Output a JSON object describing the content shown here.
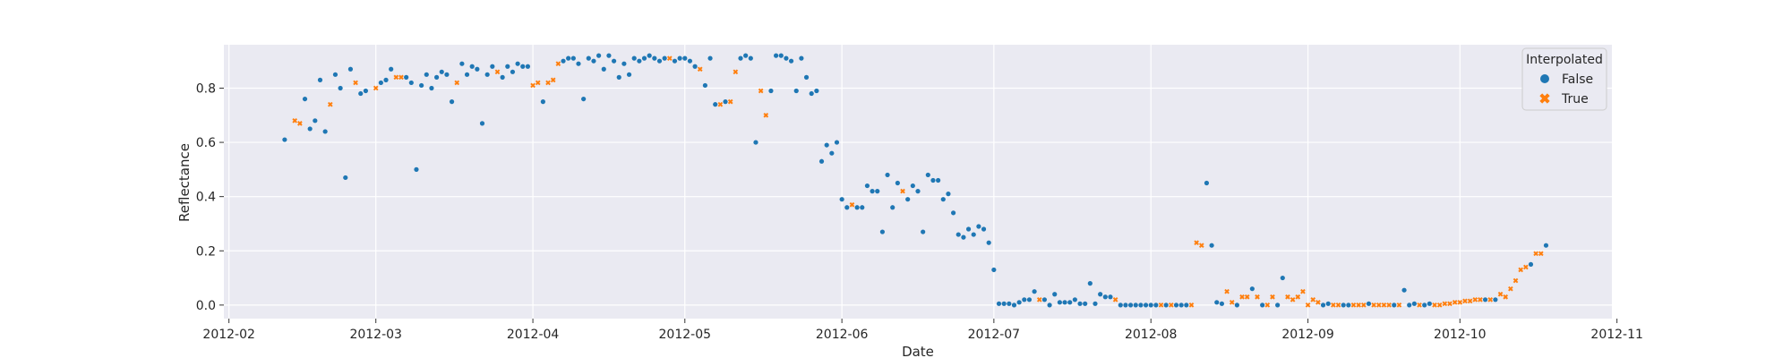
{
  "chart_data": {
    "type": "scatter",
    "title": "",
    "xlabel": "Date",
    "ylabel": "Reflectance",
    "x_ticks": [
      "2012-02",
      "2012-03",
      "2012-04",
      "2012-05",
      "2012-06",
      "2012-07",
      "2012-08",
      "2012-09",
      "2012-10",
      "2012-11"
    ],
    "x_tick_dates": [
      "2012-02-01",
      "2012-03-01",
      "2012-04-01",
      "2012-05-01",
      "2012-06-01",
      "2012-07-01",
      "2012-08-01",
      "2012-09-01",
      "2012-10-01",
      "2012-11-01"
    ],
    "y_ticks": [
      "0.0",
      "0.2",
      "0.4",
      "0.6",
      "0.8"
    ],
    "y_tick_values": [
      0.0,
      0.2,
      0.4,
      0.6,
      0.8
    ],
    "xlim": [
      "2012-01-31",
      "2012-10-31"
    ],
    "ylim": [
      -0.05,
      0.96
    ],
    "grid": true,
    "legend_position": "top-right",
    "legend": {
      "title": "Interpolated",
      "entries": [
        {
          "label": "False",
          "color": "#1f77b4",
          "marker": "circle"
        },
        {
          "label": "True",
          "color": "#ff7f0e",
          "marker": "x"
        }
      ]
    },
    "series": [
      {
        "name": "False",
        "color": "#1f77b4",
        "marker": "circle",
        "points": [
          [
            "2012-02-12",
            0.61
          ],
          [
            "2012-02-16",
            0.76
          ],
          [
            "2012-02-17",
            0.65
          ],
          [
            "2012-02-18",
            0.68
          ],
          [
            "2012-02-19",
            0.83
          ],
          [
            "2012-02-20",
            0.64
          ],
          [
            "2012-02-22",
            0.85
          ],
          [
            "2012-02-23",
            0.8
          ],
          [
            "2012-02-24",
            0.47
          ],
          [
            "2012-02-25",
            0.87
          ],
          [
            "2012-02-27",
            0.78
          ],
          [
            "2012-02-28",
            0.79
          ],
          [
            "2012-03-02",
            0.82
          ],
          [
            "2012-03-03",
            0.83
          ],
          [
            "2012-03-04",
            0.87
          ],
          [
            "2012-03-07",
            0.84
          ],
          [
            "2012-03-08",
            0.82
          ],
          [
            "2012-03-09",
            0.5
          ],
          [
            "2012-03-10",
            0.81
          ],
          [
            "2012-03-11",
            0.85
          ],
          [
            "2012-03-12",
            0.8
          ],
          [
            "2012-03-13",
            0.84
          ],
          [
            "2012-03-14",
            0.86
          ],
          [
            "2012-03-15",
            0.85
          ],
          [
            "2012-03-16",
            0.75
          ],
          [
            "2012-03-18",
            0.89
          ],
          [
            "2012-03-19",
            0.85
          ],
          [
            "2012-03-20",
            0.88
          ],
          [
            "2012-03-21",
            0.87
          ],
          [
            "2012-03-22",
            0.67
          ],
          [
            "2012-03-23",
            0.85
          ],
          [
            "2012-03-24",
            0.88
          ],
          [
            "2012-03-26",
            0.84
          ],
          [
            "2012-03-27",
            0.88
          ],
          [
            "2012-03-28",
            0.86
          ],
          [
            "2012-03-29",
            0.89
          ],
          [
            "2012-03-30",
            0.88
          ],
          [
            "2012-03-31",
            0.88
          ],
          [
            "2012-04-03",
            0.75
          ],
          [
            "2012-04-07",
            0.9
          ],
          [
            "2012-04-08",
            0.91
          ],
          [
            "2012-04-09",
            0.91
          ],
          [
            "2012-04-10",
            0.89
          ],
          [
            "2012-04-11",
            0.76
          ],
          [
            "2012-04-12",
            0.91
          ],
          [
            "2012-04-13",
            0.9
          ],
          [
            "2012-04-14",
            0.92
          ],
          [
            "2012-04-15",
            0.87
          ],
          [
            "2012-04-16",
            0.92
          ],
          [
            "2012-04-17",
            0.9
          ],
          [
            "2012-04-18",
            0.84
          ],
          [
            "2012-04-19",
            0.89
          ],
          [
            "2012-04-20",
            0.85
          ],
          [
            "2012-04-21",
            0.91
          ],
          [
            "2012-04-22",
            0.9
          ],
          [
            "2012-04-23",
            0.91
          ],
          [
            "2012-04-24",
            0.92
          ],
          [
            "2012-04-25",
            0.91
          ],
          [
            "2012-04-26",
            0.9
          ],
          [
            "2012-04-27",
            0.91
          ],
          [
            "2012-04-29",
            0.9
          ],
          [
            "2012-04-30",
            0.91
          ],
          [
            "2012-05-01",
            0.91
          ],
          [
            "2012-05-02",
            0.9
          ],
          [
            "2012-05-03",
            0.88
          ],
          [
            "2012-05-05",
            0.81
          ],
          [
            "2012-05-06",
            0.91
          ],
          [
            "2012-05-07",
            0.74
          ],
          [
            "2012-05-09",
            0.75
          ],
          [
            "2012-05-12",
            0.91
          ],
          [
            "2012-05-13",
            0.92
          ],
          [
            "2012-05-14",
            0.91
          ],
          [
            "2012-05-15",
            0.6
          ],
          [
            "2012-05-18",
            0.79
          ],
          [
            "2012-05-19",
            0.92
          ],
          [
            "2012-05-20",
            0.92
          ],
          [
            "2012-05-21",
            0.91
          ],
          [
            "2012-05-22",
            0.9
          ],
          [
            "2012-05-23",
            0.79
          ],
          [
            "2012-05-24",
            0.91
          ],
          [
            "2012-05-25",
            0.84
          ],
          [
            "2012-05-26",
            0.78
          ],
          [
            "2012-05-27",
            0.79
          ],
          [
            "2012-05-28",
            0.53
          ],
          [
            "2012-05-29",
            0.59
          ],
          [
            "2012-05-30",
            0.56
          ],
          [
            "2012-05-31",
            0.6
          ],
          [
            "2012-06-01",
            0.39
          ],
          [
            "2012-06-02",
            0.36
          ],
          [
            "2012-06-04",
            0.36
          ],
          [
            "2012-06-05",
            0.36
          ],
          [
            "2012-06-06",
            0.44
          ],
          [
            "2012-06-07",
            0.42
          ],
          [
            "2012-06-08",
            0.42
          ],
          [
            "2012-06-09",
            0.27
          ],
          [
            "2012-06-10",
            0.48
          ],
          [
            "2012-06-11",
            0.36
          ],
          [
            "2012-06-12",
            0.45
          ],
          [
            "2012-06-14",
            0.39
          ],
          [
            "2012-06-15",
            0.44
          ],
          [
            "2012-06-16",
            0.42
          ],
          [
            "2012-06-17",
            0.27
          ],
          [
            "2012-06-18",
            0.48
          ],
          [
            "2012-06-19",
            0.46
          ],
          [
            "2012-06-20",
            0.46
          ],
          [
            "2012-06-21",
            0.39
          ],
          [
            "2012-06-22",
            0.41
          ],
          [
            "2012-06-23",
            0.34
          ],
          [
            "2012-06-24",
            0.26
          ],
          [
            "2012-06-25",
            0.25
          ],
          [
            "2012-06-26",
            0.28
          ],
          [
            "2012-06-27",
            0.26
          ],
          [
            "2012-06-28",
            0.29
          ],
          [
            "2012-06-29",
            0.28
          ],
          [
            "2012-06-30",
            0.23
          ],
          [
            "2012-07-01",
            0.13
          ],
          [
            "2012-07-02",
            0.005
          ],
          [
            "2012-07-03",
            0.005
          ],
          [
            "2012-07-04",
            0.005
          ],
          [
            "2012-07-05",
            0.0
          ],
          [
            "2012-07-06",
            0.01
          ],
          [
            "2012-07-07",
            0.02
          ],
          [
            "2012-07-08",
            0.02
          ],
          [
            "2012-07-09",
            0.05
          ],
          [
            "2012-07-11",
            0.02
          ],
          [
            "2012-07-12",
            0.0
          ],
          [
            "2012-07-13",
            0.04
          ],
          [
            "2012-07-14",
            0.01
          ],
          [
            "2012-07-15",
            0.01
          ],
          [
            "2012-07-16",
            0.01
          ],
          [
            "2012-07-17",
            0.02
          ],
          [
            "2012-07-18",
            0.005
          ],
          [
            "2012-07-19",
            0.005
          ],
          [
            "2012-07-20",
            0.08
          ],
          [
            "2012-07-21",
            0.005
          ],
          [
            "2012-07-22",
            0.04
          ],
          [
            "2012-07-23",
            0.03
          ],
          [
            "2012-07-24",
            0.03
          ],
          [
            "2012-07-26",
            0.0
          ],
          [
            "2012-07-27",
            0.0
          ],
          [
            "2012-07-28",
            0.0
          ],
          [
            "2012-07-29",
            0.0
          ],
          [
            "2012-07-30",
            0.0
          ],
          [
            "2012-07-31",
            0.0
          ],
          [
            "2012-08-01",
            0.0
          ],
          [
            "2012-08-02",
            0.0
          ],
          [
            "2012-08-04",
            0.0
          ],
          [
            "2012-08-06",
            0.0
          ],
          [
            "2012-08-07",
            0.0
          ],
          [
            "2012-08-08",
            0.0
          ],
          [
            "2012-08-12",
            0.45
          ],
          [
            "2012-08-13",
            0.22
          ],
          [
            "2012-08-14",
            0.01
          ],
          [
            "2012-08-15",
            0.005
          ],
          [
            "2012-08-18",
            0.0
          ],
          [
            "2012-08-21",
            0.06
          ],
          [
            "2012-08-23",
            0.0
          ],
          [
            "2012-08-26",
            0.0
          ],
          [
            "2012-08-27",
            0.1
          ],
          [
            "2012-09-04",
            0.0
          ],
          [
            "2012-09-05",
            0.005
          ],
          [
            "2012-09-08",
            0.0
          ],
          [
            "2012-09-09",
            0.0
          ],
          [
            "2012-09-13",
            0.005
          ],
          [
            "2012-09-18",
            0.0
          ],
          [
            "2012-09-20",
            0.055
          ],
          [
            "2012-09-21",
            0.0
          ],
          [
            "2012-09-22",
            0.005
          ],
          [
            "2012-09-24",
            0.0
          ],
          [
            "2012-09-25",
            0.005
          ],
          [
            "2012-10-06",
            0.02
          ],
          [
            "2012-10-08",
            0.02
          ],
          [
            "2012-10-15",
            0.15
          ],
          [
            "2012-10-18",
            0.22
          ]
        ]
      },
      {
        "name": "True",
        "color": "#ff7f0e",
        "marker": "x",
        "points": [
          [
            "2012-02-14",
            0.68
          ],
          [
            "2012-02-15",
            0.67
          ],
          [
            "2012-02-21",
            0.74
          ],
          [
            "2012-02-26",
            0.82
          ],
          [
            "2012-03-01",
            0.8
          ],
          [
            "2012-03-05",
            0.84
          ],
          [
            "2012-03-06",
            0.84
          ],
          [
            "2012-03-17",
            0.82
          ],
          [
            "2012-03-25",
            0.86
          ],
          [
            "2012-04-01",
            0.81
          ],
          [
            "2012-04-02",
            0.82
          ],
          [
            "2012-04-04",
            0.82
          ],
          [
            "2012-04-05",
            0.83
          ],
          [
            "2012-04-06",
            0.89
          ],
          [
            "2012-04-28",
            0.91
          ],
          [
            "2012-05-04",
            0.87
          ],
          [
            "2012-05-08",
            0.74
          ],
          [
            "2012-05-10",
            0.75
          ],
          [
            "2012-05-11",
            0.86
          ],
          [
            "2012-05-16",
            0.79
          ],
          [
            "2012-05-17",
            0.7
          ],
          [
            "2012-06-03",
            0.37
          ],
          [
            "2012-06-13",
            0.42
          ],
          [
            "2012-07-10",
            0.02
          ],
          [
            "2012-07-25",
            0.02
          ],
          [
            "2012-08-03",
            0.0
          ],
          [
            "2012-08-05",
            0.0
          ],
          [
            "2012-08-09",
            0.0
          ],
          [
            "2012-08-10",
            0.23
          ],
          [
            "2012-08-11",
            0.22
          ],
          [
            "2012-08-16",
            0.05
          ],
          [
            "2012-08-17",
            0.01
          ],
          [
            "2012-08-19",
            0.03
          ],
          [
            "2012-08-20",
            0.03
          ],
          [
            "2012-08-22",
            0.03
          ],
          [
            "2012-08-24",
            0.0
          ],
          [
            "2012-08-25",
            0.03
          ],
          [
            "2012-08-28",
            0.03
          ],
          [
            "2012-08-29",
            0.02
          ],
          [
            "2012-08-30",
            0.03
          ],
          [
            "2012-08-31",
            0.05
          ],
          [
            "2012-09-01",
            0.0
          ],
          [
            "2012-09-02",
            0.02
          ],
          [
            "2012-09-03",
            0.01
          ],
          [
            "2012-09-06",
            0.0
          ],
          [
            "2012-09-07",
            0.0
          ],
          [
            "2012-09-10",
            0.0
          ],
          [
            "2012-09-11",
            0.0
          ],
          [
            "2012-09-12",
            0.0
          ],
          [
            "2012-09-14",
            0.0
          ],
          [
            "2012-09-15",
            0.0
          ],
          [
            "2012-09-16",
            0.0
          ],
          [
            "2012-09-17",
            0.0
          ],
          [
            "2012-09-19",
            0.0
          ],
          [
            "2012-09-23",
            0.0
          ],
          [
            "2012-09-26",
            0.0
          ],
          [
            "2012-09-27",
            0.0
          ],
          [
            "2012-09-28",
            0.005
          ],
          [
            "2012-09-29",
            0.005
          ],
          [
            "2012-09-30",
            0.01
          ],
          [
            "2012-10-01",
            0.01
          ],
          [
            "2012-10-02",
            0.015
          ],
          [
            "2012-10-03",
            0.015
          ],
          [
            "2012-10-04",
            0.02
          ],
          [
            "2012-10-05",
            0.02
          ],
          [
            "2012-10-07",
            0.02
          ],
          [
            "2012-10-09",
            0.04
          ],
          [
            "2012-10-10",
            0.03
          ],
          [
            "2012-10-11",
            0.06
          ],
          [
            "2012-10-12",
            0.09
          ],
          [
            "2012-10-13",
            0.13
          ],
          [
            "2012-10-14",
            0.14
          ],
          [
            "2012-10-16",
            0.19
          ],
          [
            "2012-10-17",
            0.19
          ]
        ]
      }
    ]
  }
}
